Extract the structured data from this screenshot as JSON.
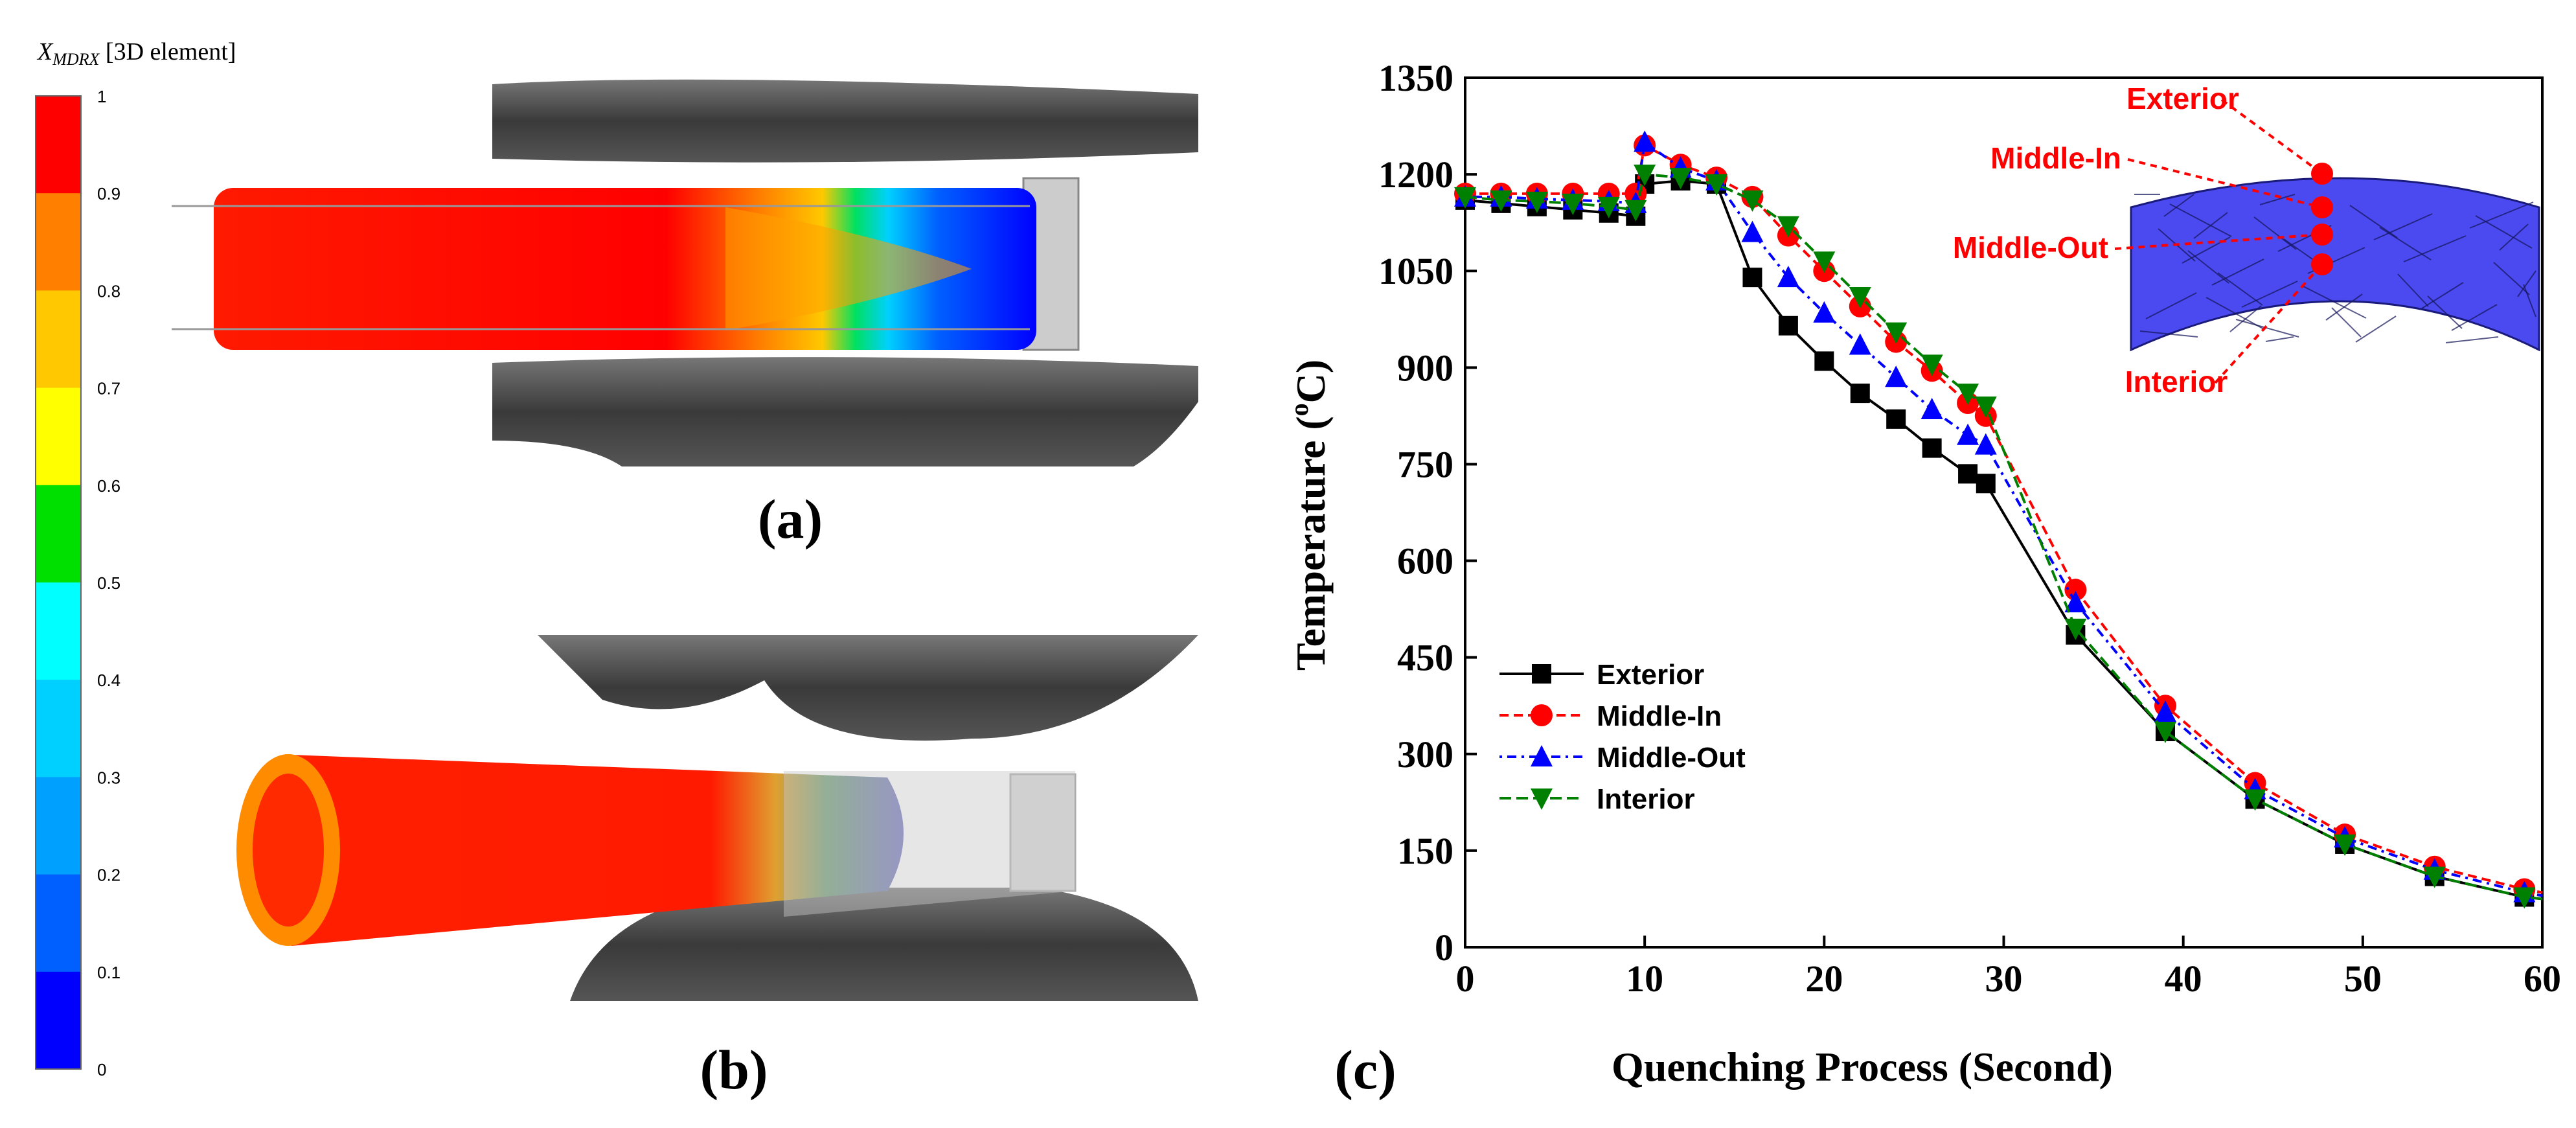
{
  "colorbar": {
    "title": "X",
    "title_sub": "MDRX",
    "title_suffix": " [3D element]",
    "ticks": [
      "1",
      "0.9",
      "0.8",
      "0.7",
      "0.6",
      "0.5",
      "0.4",
      "0.3",
      "0.2",
      "0.1",
      "0"
    ],
    "colors": [
      "#ff0000",
      "#ff8000",
      "#ffc800",
      "#ffff00",
      "#00e000",
      "#00ffff",
      "#00d0ff",
      "#00a0ff",
      "#0060ff",
      "#0000ff"
    ]
  },
  "panels": {
    "a_label": "(a)",
    "b_label": "(b)",
    "c_label": "(c)"
  },
  "chart_data": {
    "type": "line",
    "title": "",
    "xlabel": "Quenching Process (Second)",
    "ylabel": "Temperature (°C)",
    "ylabel_main": "Temperature (",
    "ylabel_sup": "o",
    "ylabel_end": "C)",
    "xlim": [
      0,
      60
    ],
    "ylim": [
      0,
      1350
    ],
    "xticks": [
      0,
      10,
      20,
      30,
      40,
      50,
      60
    ],
    "yticks": [
      0,
      150,
      300,
      450,
      600,
      750,
      900,
      1050,
      1200,
      1350
    ],
    "legend_position": "bottom-left",
    "series": [
      {
        "name": "Exterior",
        "color": "#000000",
        "marker": "square",
        "dash": "",
        "x": [
          0,
          2,
          4,
          6,
          8,
          9.5,
          10,
          12,
          14,
          16,
          18,
          20,
          22,
          24,
          26,
          28,
          29,
          34,
          39,
          44,
          49,
          54,
          59,
          60
        ],
        "y": [
          1160,
          1155,
          1150,
          1145,
          1140,
          1135,
          1185,
          1190,
          1185,
          1040,
          965,
          910,
          860,
          820,
          775,
          735,
          720,
          485,
          335,
          230,
          160,
          110,
          78,
          75
        ]
      },
      {
        "name": "Middle-In",
        "color": "#ff0000",
        "marker": "circle",
        "dash": "14,8",
        "x": [
          0,
          2,
          4,
          6,
          8,
          9.5,
          10,
          12,
          14,
          16,
          18,
          20,
          22,
          24,
          26,
          28,
          29,
          34,
          39,
          44,
          49,
          54,
          59,
          60
        ],
        "y": [
          1170,
          1170,
          1170,
          1170,
          1170,
          1170,
          1245,
          1215,
          1195,
          1165,
          1105,
          1050,
          995,
          940,
          895,
          845,
          825,
          555,
          375,
          255,
          175,
          125,
          90,
          85
        ]
      },
      {
        "name": "Middle-Out",
        "color": "#0000ff",
        "marker": "triangle",
        "dash": "4,8,14,8",
        "x": [
          0,
          2,
          4,
          6,
          8,
          9.5,
          10,
          12,
          14,
          16,
          18,
          20,
          22,
          24,
          26,
          28,
          29,
          34,
          39,
          44,
          49,
          54,
          59,
          60
        ],
        "y": [
          1165,
          1165,
          1162,
          1160,
          1158,
          1155,
          1250,
          1210,
          1190,
          1110,
          1040,
          985,
          935,
          885,
          835,
          795,
          780,
          535,
          365,
          245,
          170,
          120,
          85,
          80
        ]
      },
      {
        "name": "Interior",
        "color": "#008000",
        "marker": "triangle-down",
        "dash": "18,8",
        "x": [
          0,
          2,
          4,
          6,
          8,
          9.5,
          10,
          12,
          14,
          16,
          18,
          20,
          22,
          24,
          26,
          28,
          29,
          34,
          39,
          44,
          49,
          54,
          59,
          60
        ],
        "y": [
          1165,
          1160,
          1158,
          1155,
          1150,
          1145,
          1200,
          1195,
          1185,
          1160,
          1120,
          1065,
          1010,
          955,
          905,
          860,
          840,
          495,
          335,
          230,
          160,
          110,
          78,
          75
        ]
      }
    ],
    "inset": {
      "labels": [
        "Exterior",
        "Middle-In",
        "Middle-Out",
        "Interior"
      ]
    }
  }
}
